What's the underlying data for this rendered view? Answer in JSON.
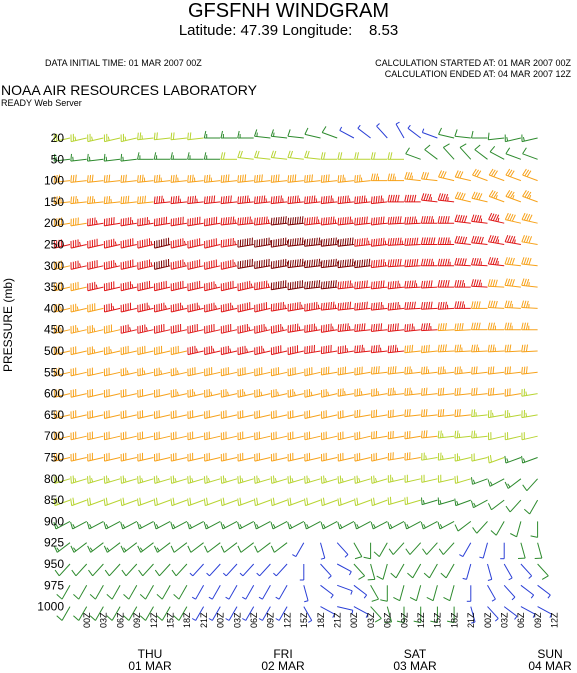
{
  "header": {
    "title": "GFSFNH WINDGRAM",
    "subtitle": "Latitude: 47.39 Longitude:    8.53",
    "data_initial_time": "DATA INITIAL TIME: 01 MAR 2007 00Z",
    "calc_started": "CALCULATION STARTED AT: 01 MAR 2007 00Z",
    "calc_ended": "CALCULATION ENDED AT: 04 MAR 2007 12Z",
    "org": "NOAA AIR RESOURCES LABORATORY",
    "server": "READY Web Server"
  },
  "colors": {
    "calm": "#2a3fd6",
    "light": "#2d8a2d",
    "moderate": "#b8d432",
    "fresh": "#f7a21b",
    "strong": "#e01818",
    "very_strong": "#7a0000"
  },
  "chart_data": {
    "type": "windbarb",
    "ylabel": "PRESSURE (mb)",
    "pressure_levels": [
      "20",
      "50",
      "100",
      "150",
      "200",
      "250",
      "300",
      "350",
      "400",
      "450",
      "500",
      "550",
      "600",
      "650",
      "700",
      "750",
      "800",
      "850",
      "900",
      "925",
      "950",
      "975",
      "1000"
    ],
    "time_ticks": [
      "00Z",
      "03Z",
      "06Z",
      "09Z",
      "12Z",
      "15Z",
      "18Z",
      "21Z",
      "00Z",
      "03Z",
      "06Z",
      "09Z",
      "12Z",
      "15Z",
      "18Z",
      "21Z",
      "00Z",
      "03Z",
      "06Z",
      "09Z",
      "12Z",
      "15Z",
      "18Z",
      "21Z",
      "00Z",
      "03Z",
      "06Z",
      "09Z",
      "12Z"
    ],
    "days": [
      {
        "weekday": "THU",
        "date": "01 MAR"
      },
      {
        "weekday": "FRI",
        "date": "02 MAR"
      },
      {
        "weekday": "SAT",
        "date": "03 MAR"
      },
      {
        "weekday": "SUN",
        "date": "04 MAR"
      }
    ],
    "wind_speed_kt": [
      [
        25,
        25,
        25,
        25,
        25,
        25,
        20,
        20,
        20,
        15,
        15,
        15,
        15,
        15,
        10,
        10,
        10,
        5,
        5,
        5,
        5,
        5,
        5,
        10,
        10,
        10,
        10,
        15,
        15
      ],
      [
        15,
        15,
        15,
        15,
        15,
        15,
        15,
        15,
        15,
        15,
        20,
        20,
        20,
        20,
        20,
        20,
        20,
        20,
        20,
        20,
        20,
        10,
        10,
        10,
        10,
        10,
        10,
        10,
        10
      ],
      [
        30,
        30,
        30,
        30,
        30,
        35,
        35,
        35,
        35,
        35,
        40,
        40,
        40,
        40,
        40,
        40,
        40,
        35,
        35,
        35,
        35,
        35,
        30,
        30,
        30,
        30,
        30,
        30,
        30
      ],
      [
        35,
        35,
        35,
        35,
        40,
        40,
        45,
        45,
        45,
        50,
        50,
        55,
        55,
        55,
        55,
        55,
        55,
        55,
        55,
        55,
        50,
        50,
        45,
        45,
        40,
        40,
        35,
        35,
        35
      ],
      [
        40,
        40,
        45,
        50,
        55,
        55,
        60,
        60,
        60,
        60,
        65,
        65,
        65,
        70,
        70,
        65,
        65,
        65,
        60,
        60,
        60,
        55,
        55,
        50,
        50,
        45,
        45,
        40,
        40
      ],
      [
        45,
        45,
        50,
        55,
        60,
        65,
        70,
        65,
        60,
        60,
        65,
        70,
        75,
        80,
        80,
        75,
        75,
        70,
        65,
        65,
        65,
        60,
        60,
        55,
        50,
        50,
        45,
        45,
        40
      ],
      [
        40,
        45,
        50,
        55,
        60,
        65,
        70,
        65,
        60,
        60,
        65,
        70,
        70,
        75,
        80,
        80,
        75,
        75,
        70,
        65,
        60,
        60,
        55,
        55,
        50,
        45,
        45,
        40,
        40
      ],
      [
        40,
        40,
        45,
        50,
        55,
        60,
        60,
        60,
        60,
        55,
        60,
        65,
        65,
        70,
        70,
        70,
        70,
        65,
        60,
        60,
        55,
        55,
        50,
        50,
        45,
        45,
        40,
        40,
        35
      ],
      [
        35,
        35,
        40,
        45,
        50,
        55,
        55,
        55,
        55,
        55,
        55,
        60,
        60,
        65,
        65,
        65,
        65,
        60,
        60,
        55,
        55,
        50,
        50,
        45,
        45,
        40,
        40,
        35,
        35
      ],
      [
        35,
        35,
        35,
        40,
        45,
        45,
        50,
        50,
        50,
        50,
        50,
        55,
        55,
        55,
        55,
        55,
        55,
        55,
        50,
        50,
        50,
        45,
        45,
        40,
        40,
        40,
        35,
        35,
        35
      ],
      [
        30,
        30,
        35,
        35,
        40,
        40,
        40,
        40,
        45,
        45,
        45,
        45,
        45,
        50,
        50,
        50,
        50,
        45,
        45,
        45,
        45,
        40,
        40,
        40,
        35,
        35,
        35,
        30,
        30
      ],
      [
        30,
        30,
        30,
        30,
        35,
        35,
        35,
        35,
        40,
        40,
        40,
        40,
        40,
        40,
        40,
        40,
        40,
        40,
        40,
        40,
        40,
        35,
        35,
        35,
        35,
        30,
        30,
        30,
        30
      ],
      [
        30,
        30,
        30,
        30,
        30,
        30,
        30,
        35,
        35,
        35,
        35,
        35,
        35,
        35,
        35,
        35,
        35,
        35,
        35,
        35,
        35,
        35,
        30,
        30,
        30,
        30,
        30,
        30,
        25
      ],
      [
        30,
        30,
        30,
        30,
        30,
        30,
        30,
        30,
        30,
        30,
        30,
        30,
        30,
        30,
        30,
        30,
        30,
        30,
        30,
        30,
        30,
        30,
        30,
        30,
        30,
        25,
        25,
        25,
        25
      ],
      [
        30,
        30,
        30,
        30,
        30,
        30,
        30,
        30,
        30,
        30,
        30,
        30,
        30,
        30,
        30,
        30,
        30,
        30,
        30,
        30,
        30,
        30,
        30,
        25,
        25,
        25,
        20,
        20,
        20
      ],
      [
        30,
        30,
        30,
        30,
        30,
        30,
        30,
        30,
        30,
        30,
        30,
        30,
        30,
        30,
        30,
        30,
        30,
        30,
        30,
        30,
        30,
        30,
        25,
        25,
        25,
        20,
        20,
        15,
        15
      ],
      [
        25,
        25,
        25,
        25,
        25,
        25,
        25,
        25,
        25,
        25,
        25,
        25,
        25,
        25,
        25,
        25,
        25,
        25,
        25,
        25,
        25,
        20,
        20,
        20,
        20,
        15,
        15,
        15,
        10
      ],
      [
        20,
        20,
        20,
        20,
        20,
        20,
        20,
        20,
        20,
        20,
        20,
        20,
        20,
        20,
        20,
        20,
        20,
        20,
        20,
        20,
        20,
        20,
        15,
        15,
        15,
        15,
        10,
        10,
        10
      ],
      [
        15,
        15,
        15,
        15,
        15,
        15,
        15,
        15,
        15,
        15,
        15,
        15,
        15,
        15,
        15,
        15,
        15,
        15,
        15,
        15,
        15,
        15,
        15,
        15,
        10,
        10,
        10,
        10,
        10
      ],
      [
        15,
        15,
        15,
        15,
        15,
        15,
        15,
        10,
        10,
        10,
        10,
        10,
        10,
        10,
        5,
        5,
        5,
        10,
        10,
        10,
        10,
        10,
        10,
        10,
        5,
        5,
        5,
        10,
        10
      ],
      [
        10,
        10,
        10,
        10,
        10,
        10,
        10,
        10,
        5,
        5,
        5,
        5,
        5,
        5,
        5,
        5,
        5,
        10,
        10,
        10,
        10,
        10,
        10,
        10,
        5,
        5,
        5,
        5,
        10
      ],
      [
        10,
        10,
        10,
        10,
        10,
        10,
        10,
        10,
        5,
        5,
        5,
        5,
        5,
        5,
        5,
        5,
        5,
        5,
        10,
        10,
        10,
        10,
        10,
        10,
        5,
        5,
        5,
        5,
        5
      ],
      [
        10,
        10,
        10,
        10,
        10,
        10,
        10,
        10,
        5,
        5,
        5,
        5,
        5,
        5,
        5,
        5,
        5,
        5,
        10,
        10,
        10,
        10,
        10,
        10,
        5,
        5,
        5,
        5,
        5
      ]
    ],
    "wind_dir_deg": [
      [
        250,
        250,
        250,
        250,
        250,
        260,
        260,
        260,
        260,
        270,
        270,
        270,
        280,
        280,
        280,
        290,
        300,
        310,
        320,
        330,
        340,
        320,
        300,
        290,
        280,
        270,
        260,
        250,
        250
      ],
      [
        260,
        260,
        260,
        260,
        260,
        270,
        270,
        270,
        270,
        270,
        270,
        280,
        280,
        280,
        280,
        280,
        270,
        270,
        270,
        270,
        270,
        300,
        320,
        330,
        330,
        320,
        310,
        300,
        300
      ],
      [
        260,
        260,
        260,
        260,
        260,
        260,
        260,
        260,
        260,
        260,
        260,
        260,
        260,
        260,
        260,
        260,
        260,
        260,
        260,
        270,
        270,
        280,
        280,
        290,
        290,
        300,
        300,
        300,
        300
      ],
      [
        260,
        260,
        260,
        260,
        260,
        260,
        260,
        260,
        260,
        260,
        260,
        260,
        260,
        260,
        260,
        260,
        260,
        260,
        260,
        260,
        270,
        270,
        280,
        280,
        290,
        290,
        300,
        300,
        300
      ],
      [
        255,
        255,
        255,
        255,
        255,
        255,
        255,
        255,
        255,
        255,
        260,
        260,
        260,
        260,
        260,
        260,
        260,
        260,
        260,
        260,
        265,
        265,
        270,
        270,
        280,
        280,
        290,
        290,
        290
      ],
      [
        250,
        250,
        250,
        250,
        250,
        250,
        250,
        250,
        250,
        250,
        255,
        255,
        255,
        255,
        260,
        260,
        260,
        260,
        260,
        260,
        265,
        265,
        270,
        270,
        280,
        280,
        285,
        285,
        285
      ],
      [
        250,
        250,
        250,
        250,
        250,
        250,
        250,
        250,
        250,
        250,
        250,
        255,
        255,
        255,
        260,
        260,
        260,
        260,
        260,
        260,
        265,
        265,
        270,
        270,
        275,
        275,
        280,
        280,
        280
      ],
      [
        250,
        250,
        250,
        250,
        250,
        250,
        250,
        250,
        250,
        250,
        250,
        250,
        255,
        255,
        255,
        260,
        260,
        260,
        260,
        260,
        260,
        265,
        265,
        270,
        270,
        275,
        275,
        280,
        280
      ],
      [
        250,
        250,
        250,
        250,
        250,
        250,
        250,
        250,
        250,
        250,
        250,
        250,
        250,
        255,
        255,
        255,
        260,
        260,
        260,
        260,
        260,
        265,
        265,
        265,
        270,
        270,
        275,
        275,
        275
      ],
      [
        250,
        250,
        250,
        250,
        250,
        250,
        250,
        250,
        250,
        250,
        250,
        250,
        250,
        250,
        255,
        255,
        255,
        260,
        260,
        260,
        260,
        260,
        265,
        265,
        265,
        270,
        270,
        270,
        270
      ],
      [
        250,
        250,
        250,
        250,
        250,
        250,
        250,
        250,
        250,
        250,
        250,
        250,
        250,
        250,
        250,
        255,
        255,
        255,
        260,
        260,
        260,
        260,
        260,
        265,
        265,
        265,
        265,
        265,
        265
      ],
      [
        250,
        250,
        250,
        250,
        250,
        250,
        250,
        250,
        250,
        250,
        250,
        250,
        250,
        250,
        250,
        250,
        255,
        255,
        255,
        260,
        260,
        260,
        260,
        260,
        260,
        260,
        260,
        260,
        260
      ],
      [
        250,
        250,
        250,
        250,
        250,
        250,
        250,
        250,
        250,
        250,
        250,
        250,
        250,
        250,
        250,
        250,
        250,
        255,
        255,
        255,
        260,
        260,
        260,
        260,
        260,
        260,
        260,
        255,
        255
      ],
      [
        250,
        250,
        250,
        250,
        250,
        250,
        250,
        250,
        250,
        250,
        250,
        250,
        250,
        250,
        250,
        250,
        250,
        250,
        255,
        255,
        255,
        260,
        260,
        260,
        260,
        260,
        255,
        255,
        255
      ],
      [
        250,
        250,
        250,
        250,
        250,
        250,
        250,
        250,
        250,
        250,
        250,
        250,
        250,
        250,
        250,
        250,
        250,
        250,
        250,
        255,
        255,
        255,
        260,
        260,
        260,
        260,
        250,
        250,
        250
      ],
      [
        250,
        250,
        250,
        250,
        250,
        250,
        250,
        250,
        250,
        250,
        250,
        250,
        250,
        250,
        250,
        250,
        250,
        250,
        250,
        250,
        255,
        255,
        255,
        255,
        250,
        250,
        240,
        240,
        240
      ],
      [
        245,
        245,
        245,
        245,
        245,
        245,
        245,
        245,
        245,
        245,
        245,
        245,
        245,
        245,
        245,
        245,
        245,
        245,
        245,
        245,
        250,
        250,
        250,
        250,
        245,
        240,
        230,
        220,
        210
      ],
      [
        240,
        240,
        240,
        240,
        240,
        240,
        240,
        240,
        240,
        240,
        240,
        240,
        240,
        240,
        240,
        240,
        240,
        240,
        240,
        240,
        245,
        245,
        245,
        245,
        240,
        230,
        220,
        210,
        200
      ],
      [
        230,
        230,
        230,
        230,
        230,
        230,
        230,
        230,
        230,
        230,
        230,
        230,
        230,
        230,
        230,
        230,
        230,
        230,
        230,
        230,
        230,
        230,
        230,
        230,
        220,
        210,
        200,
        190,
        180
      ],
      [
        220,
        220,
        220,
        220,
        220,
        220,
        220,
        220,
        220,
        220,
        220,
        220,
        220,
        220,
        200,
        170,
        150,
        160,
        180,
        200,
        210,
        210,
        210,
        210,
        200,
        190,
        180,
        170,
        170
      ],
      [
        210,
        210,
        210,
        210,
        210,
        210,
        210,
        210,
        210,
        210,
        210,
        210,
        210,
        210,
        180,
        150,
        130,
        150,
        170,
        190,
        200,
        200,
        200,
        200,
        190,
        170,
        160,
        150,
        150
      ],
      [
        200,
        200,
        200,
        200,
        200,
        200,
        200,
        200,
        200,
        200,
        200,
        200,
        200,
        200,
        170,
        140,
        120,
        140,
        160,
        180,
        190,
        190,
        190,
        190,
        180,
        160,
        150,
        140,
        140
      ],
      [
        200,
        200,
        200,
        200,
        200,
        200,
        200,
        200,
        200,
        200,
        200,
        200,
        200,
        200,
        160,
        130,
        110,
        130,
        150,
        170,
        180,
        180,
        180,
        180,
        170,
        150,
        140,
        130,
        130
      ]
    ]
  }
}
